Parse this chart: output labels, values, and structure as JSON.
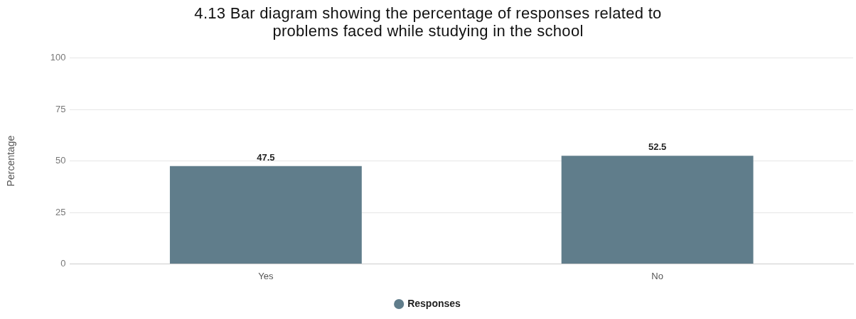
{
  "chart_data": {
    "type": "bar",
    "title": "4.13 Bar diagram showing the percentage of responses related to problems faced while studying in the school",
    "ylabel": "Percentage",
    "categories": [
      "Yes",
      "No"
    ],
    "series": [
      {
        "name": "Responses",
        "color": "#607d8b",
        "values": [
          47.5,
          52.5
        ]
      }
    ],
    "ylim": [
      0,
      100
    ],
    "yticks": [
      0,
      25,
      50,
      75,
      100
    ],
    "grid": "y",
    "legend": "bottom",
    "data_labels": true
  }
}
